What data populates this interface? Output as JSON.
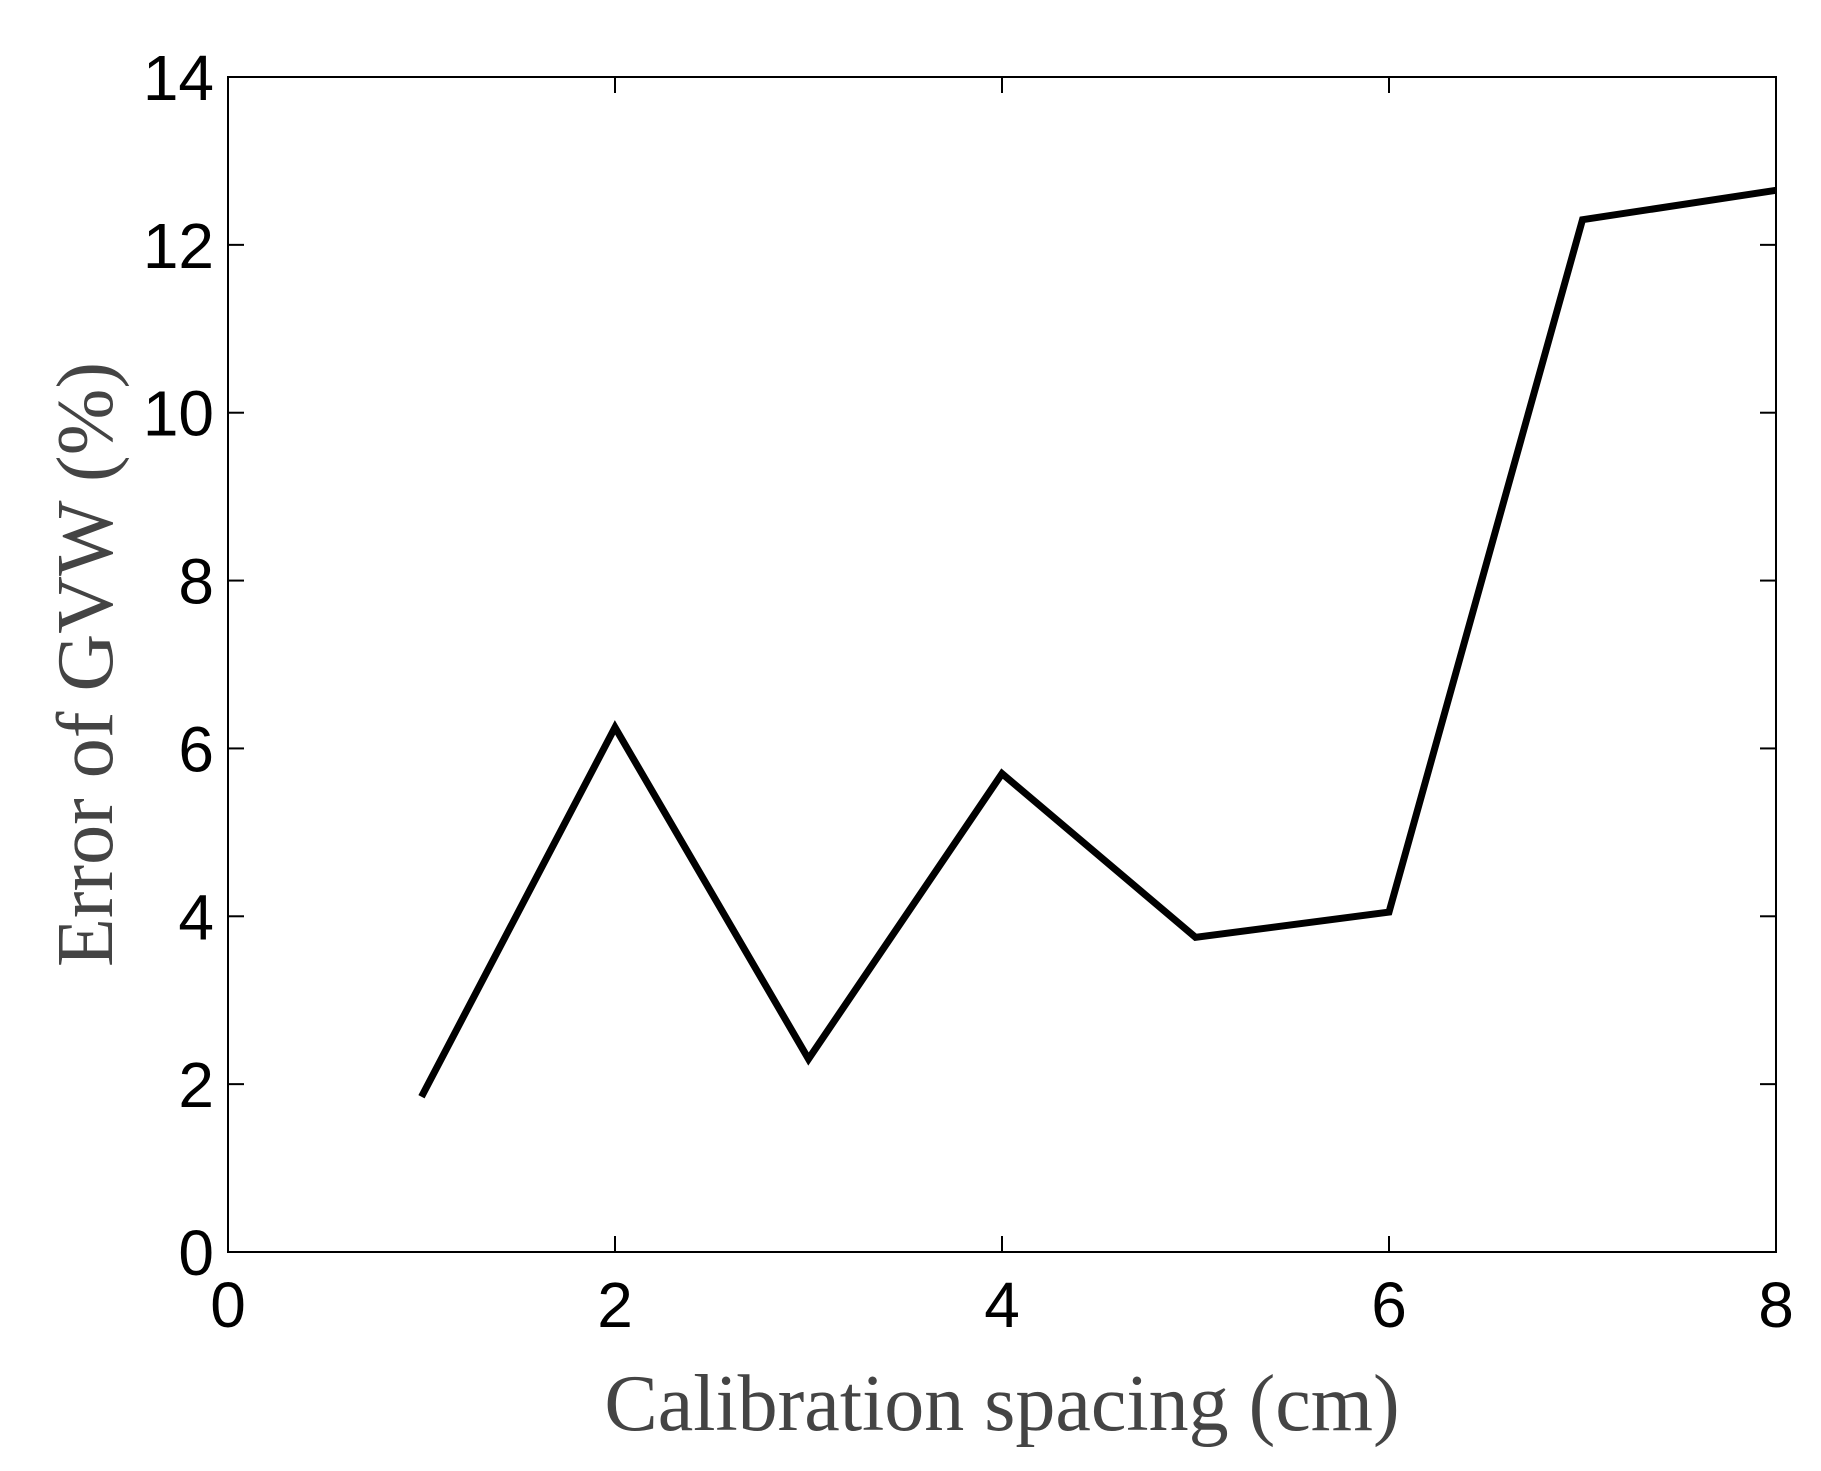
{
  "chart_data": {
    "type": "line",
    "title": "",
    "xlabel": "Calibration spacing (cm)",
    "ylabel": "Error of GVW  (%)",
    "xlim": [
      0,
      8
    ],
    "ylim": [
      0,
      14
    ],
    "x_ticks": [
      0,
      2,
      4,
      6,
      8
    ],
    "y_ticks": [
      0,
      2,
      4,
      6,
      8,
      10,
      12,
      14
    ],
    "grid": false,
    "legend": "none",
    "series": [
      {
        "x": [
          1,
          2,
          3,
          4,
          5,
          6,
          7,
          8
        ],
        "y": [
          1.85,
          6.25,
          2.3,
          5.7,
          3.75,
          4.05,
          12.3,
          12.65
        ],
        "color": "#000000"
      }
    ]
  }
}
